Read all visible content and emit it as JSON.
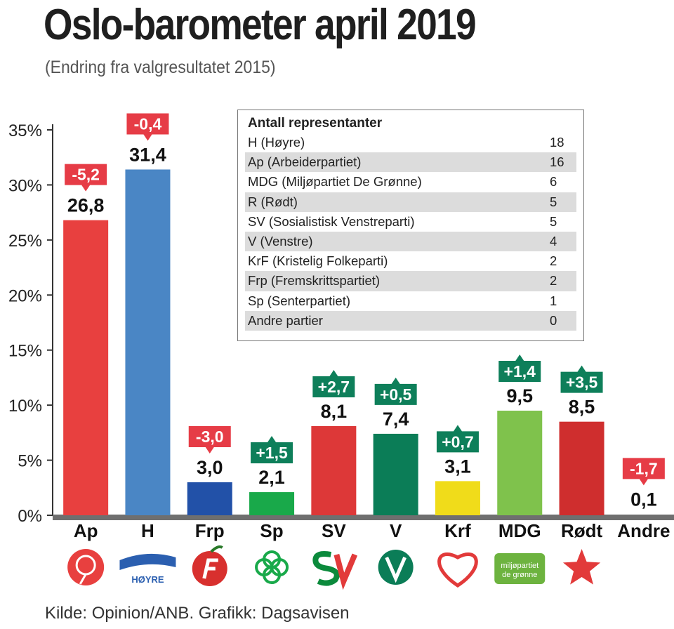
{
  "title": "Oslo-barometer april 2019",
  "subtitle": "(Endring fra valgresultatet 2015)",
  "source": "Kilde: Opinion/ANB. Grafikk: Dagsavisen",
  "chart_data": {
    "type": "bar",
    "ylim": [
      0,
      35
    ],
    "ytick_labels": [
      "0%",
      "5%",
      "10%",
      "15%",
      "20%",
      "25%",
      "30%",
      "35%"
    ],
    "categories": [
      "Ap",
      "H",
      "Frp",
      "Sp",
      "SV",
      "V",
      "Krf",
      "MDG",
      "Rødt",
      "Andre"
    ],
    "values": [
      26.8,
      31.4,
      3.0,
      2.1,
      8.1,
      7.4,
      3.1,
      9.5,
      8.5,
      0.1
    ],
    "value_labels": [
      "26,8",
      "31,4",
      "3,0",
      "2,1",
      "8,1",
      "7,4",
      "3,1",
      "9,5",
      "8,5",
      "0,1"
    ],
    "change": [
      -5.2,
      -0.4,
      -3.0,
      1.5,
      2.7,
      0.5,
      0.7,
      1.4,
      3.5,
      -1.7
    ],
    "change_labels": [
      "-5,2",
      "-0,4",
      "-3,0",
      "+1,5",
      "+2,7",
      "+0,5",
      "+0,7",
      "+1,4",
      "+3,5",
      "-1,7"
    ],
    "bar_colors": [
      "#e8403f",
      "#4a86c5",
      "#2251a8",
      "#19a94a",
      "#dd3838",
      "#0b7d57",
      "#f0dc1a",
      "#7fc24c",
      "#cf2e2e",
      "#ffffff"
    ],
    "change_colors": {
      "negative": "#e63c46",
      "positive": "#0e7f5a"
    },
    "logo_texts": {
      "H": "HØYRE",
      "MDG_line1": "miljøpartiet",
      "MDG_line2": "de grønne"
    },
    "grid": false
  },
  "seats": {
    "title": "Antall representanter",
    "rows": [
      {
        "label": "H (Høyre)",
        "value": "18"
      },
      {
        "label": "Ap (Arbeiderpartiet)",
        "value": "16"
      },
      {
        "label": "MDG (Miljøpartiet De Grønne)",
        "value": "6"
      },
      {
        "label": "R (Rødt)",
        "value": "5"
      },
      {
        "label": "SV (Sosialistisk Venstreparti)",
        "value": "5"
      },
      {
        "label": "V (Venstre)",
        "value": "4"
      },
      {
        "label": "KrF (Kristelig Folkeparti)",
        "value": "2"
      },
      {
        "label": "Frp (Fremskrittspartiet)",
        "value": "2"
      },
      {
        "label": "Sp (Senterpartiet)",
        "value": "1"
      },
      {
        "label": "Andre partier",
        "value": "0"
      }
    ]
  }
}
